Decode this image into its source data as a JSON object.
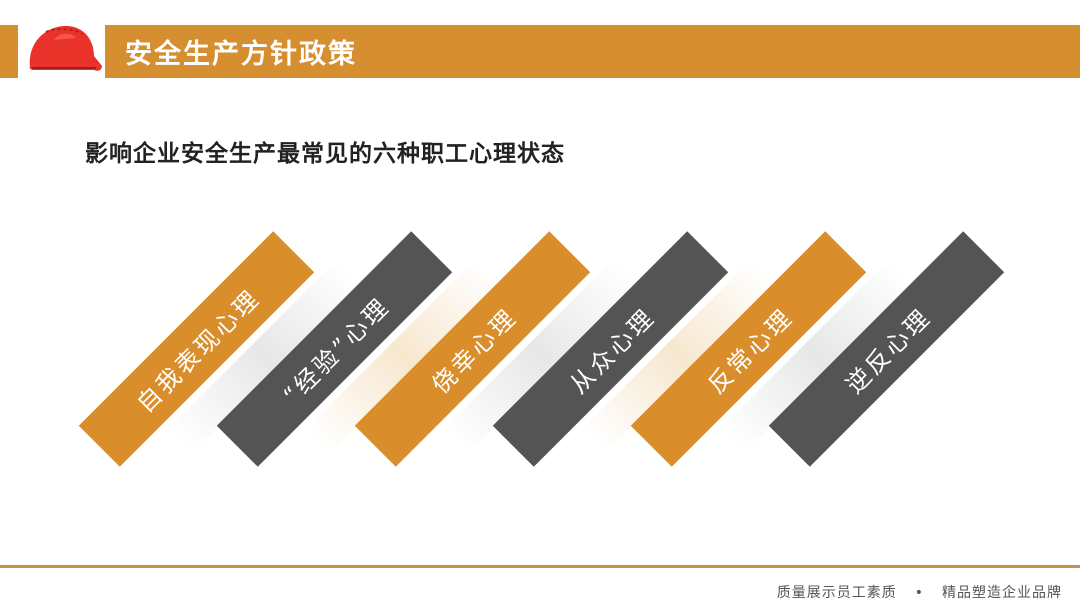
{
  "header": {
    "title": "安全生产方针政策",
    "icon": "safety-helmet-icon"
  },
  "subtitle": "影响企业安全生产最常见的六种职工心理状态",
  "items": [
    {
      "label": "自我表现心理",
      "color": "#D98E2B"
    },
    {
      "label": "“经验”心理",
      "color": "#545454"
    },
    {
      "label": "侥幸心理",
      "color": "#D98E2B"
    },
    {
      "label": "从众心理",
      "color": "#545454"
    },
    {
      "label": "反常心理",
      "color": "#D98E2B"
    },
    {
      "label": "逆反心理",
      "color": "#545454"
    }
  ],
  "footer": {
    "left": "质量展示员工素质",
    "separator": "•",
    "right": "精品塑造企业品牌"
  },
  "colors": {
    "accent": "#D68F30",
    "dark": "#545454",
    "footer_line": "#C8914A"
  }
}
